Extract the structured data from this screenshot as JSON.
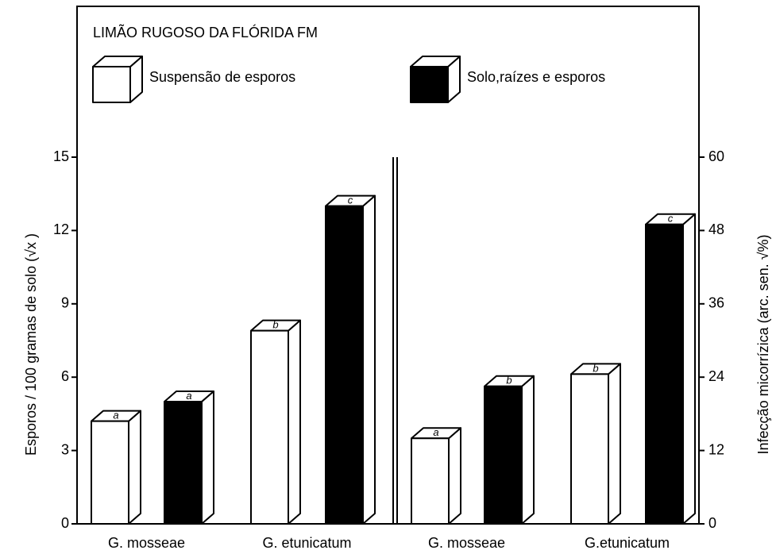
{
  "chart_data": [
    {
      "type": "bar3d",
      "title": "LIMÃO RUGOSO DA FLÓRIDA FM",
      "ylabel": "Esporos / 100 gramas de solo (√x )",
      "categories": [
        "G. mosseae",
        "G. etunicatum"
      ],
      "series": [
        {
          "name": "Suspensão de esporos",
          "color": "#ffffff",
          "values": [
            4.2,
            7.9
          ],
          "letters": [
            "a",
            "b"
          ]
        },
        {
          "name": "Solo,raízes e esporos",
          "color": "#000000",
          "values": [
            5.0,
            13.0
          ],
          "letters": [
            "a",
            "c"
          ]
        }
      ],
      "ylim": [
        0,
        15
      ],
      "yticks": [
        0,
        3,
        6,
        9,
        12,
        15
      ]
    },
    {
      "type": "bar3d",
      "ylabel": "Infecção micorrízica (arc. sen. √%)",
      "categories": [
        "G. mosseae",
        "G.etunicatum"
      ],
      "series": [
        {
          "color": "#ffffff",
          "values": [
            14,
            24.5
          ],
          "letters": [
            "a",
            "b"
          ]
        },
        {
          "color": "#000000",
          "values": [
            22.5,
            49
          ],
          "letters": [
            "b",
            "c"
          ]
        }
      ],
      "ylim": [
        0,
        60
      ],
      "yticks": [
        0,
        12,
        24,
        36,
        48,
        60
      ],
      "axis": "right"
    }
  ]
}
